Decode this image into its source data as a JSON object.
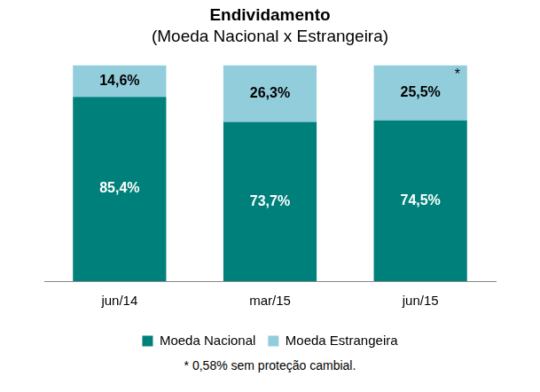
{
  "chart_data": {
    "type": "bar",
    "title": "Endividamento",
    "subtitle": "(Moeda Nacional x Estrangeira)",
    "categories": [
      "jun/14",
      "mar/15",
      "jun/15"
    ],
    "series": [
      {
        "name": "Moeda Nacional",
        "color": "#00807a",
        "values": [
          85.4,
          73.7,
          74.5
        ],
        "value_labels": [
          "85,4%",
          "73,7%",
          "74,5%"
        ]
      },
      {
        "name": "Moeda Estrangeira",
        "color": "#92cddc",
        "values": [
          14.6,
          26.3,
          25.5
        ],
        "value_labels": [
          "14,6%",
          "26,3%",
          "25,5%"
        ]
      }
    ],
    "ylim": [
      0,
      100
    ],
    "stacked": true,
    "data_labels": true,
    "tick_labels": "x",
    "grid": false,
    "legend": "bottom",
    "annotations": [
      {
        "text": "*",
        "x": "jun/15",
        "series": "Moeda Estrangeira"
      }
    ],
    "footnote": "* 0,58% sem proteção cambial."
  }
}
